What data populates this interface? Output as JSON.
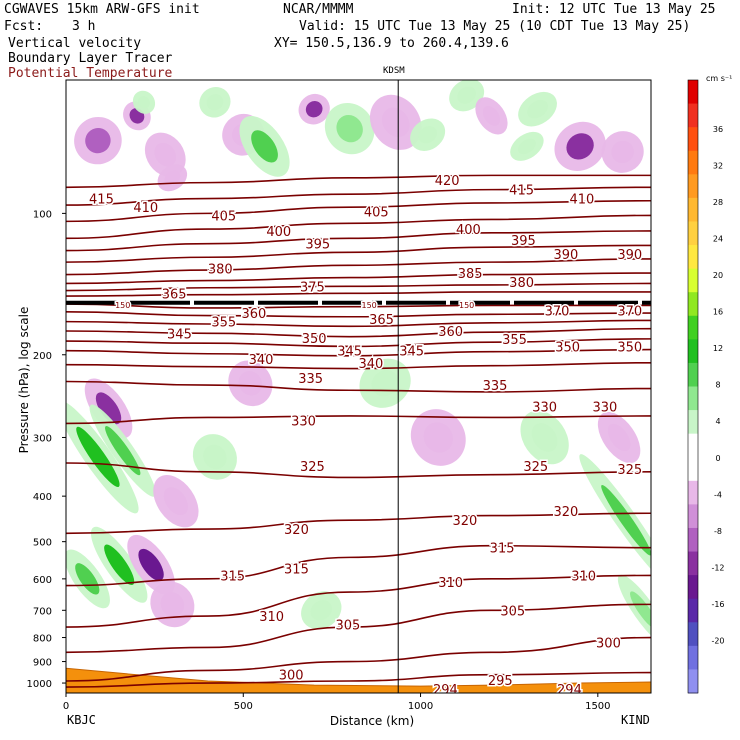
{
  "header": {
    "model": "CGWAVES 15km ARW-GFS init",
    "org": "NCAR/MMMM",
    "init": "Init: 12 UTC Tue 13 May 25",
    "fcst_label": "Fcst:",
    "fcst_value": "3 h",
    "valid": "Valid: 15 UTC Tue 13 May 25 (10 CDT Tue 13 May 25)",
    "field1": "Vertical velocity",
    "field2": "Boundary Layer Tracer",
    "field3": "Potential Temperature",
    "xy": "XY= 150.5,136.9 to 260.4,139.6",
    "station_mid": "KDSM",
    "station_left": "KBJC",
    "station_right": "KIND"
  },
  "colors": {
    "theta": "#7a0000",
    "theta_label": "#800000",
    "ground": "#f4900c",
    "tropopause": "#000000"
  },
  "chart_data": {
    "type": "cross-section",
    "xlabel": "Distance (km)",
    "ylabel": "Pressure (hPa), log scale",
    "xlim": [
      0,
      1650
    ],
    "ylim": [
      1050,
      52
    ],
    "x_ticks": [
      0,
      500,
      1000,
      1500
    ],
    "y_ticks": [
      100,
      200,
      300,
      400,
      500,
      600,
      700,
      800,
      900,
      1000
    ],
    "kdsm_km": 937,
    "theta_contours": [
      {
        "value": 420,
        "p": [
          88,
          86,
          84,
          83,
          83
        ]
      },
      {
        "value": 415,
        "p": [
          96,
          93,
          91,
          89,
          88
        ]
      },
      {
        "value": 410,
        "p": [
          104,
          100,
          97,
          95,
          94
        ]
      },
      {
        "value": 405,
        "p": [
          113,
          108,
          105,
          103,
          101
        ]
      },
      {
        "value": 400,
        "p": [
          120,
          116,
          113,
          110,
          109
        ]
      },
      {
        "value": 395,
        "p": [
          127,
          124,
          121,
          118,
          117
        ]
      },
      {
        "value": 390,
        "p": [
          135,
          132,
          129,
          127,
          125
        ]
      },
      {
        "value": 385,
        "p": [
          141,
          139,
          137,
          135,
          134
        ]
      },
      {
        "value": 380,
        "p": [
          146,
          144,
          143,
          142,
          141
        ]
      },
      {
        "value": 375,
        "p": [
          150,
          149,
          148,
          147,
          147
        ]
      },
      {
        "value": 370,
        "p": [
          156,
          159,
          158,
          157,
          157
        ]
      },
      {
        "value": 365,
        "p": [
          162,
          165,
          166,
          164,
          163
        ]
      },
      {
        "value": 360,
        "p": [
          170,
          172,
          174,
          171,
          169
        ]
      },
      {
        "value": 355,
        "p": [
          178,
          180,
          183,
          179,
          176
        ]
      },
      {
        "value": 350,
        "p": [
          187,
          189,
          192,
          188,
          185
        ]
      },
      {
        "value": 345,
        "p": [
          196,
          199,
          201,
          197,
          195
        ]
      },
      {
        "value": 340,
        "p": [
          210,
          212,
          214,
          211,
          208
        ]
      },
      {
        "value": 335,
        "p": [
          228,
          232,
          238,
          240,
          236
        ]
      },
      {
        "value": 330,
        "p": [
          280,
          272,
          270,
          272,
          270
        ]
      },
      {
        "value": 325,
        "p": [
          340,
          355,
          365,
          360,
          355
        ]
      },
      {
        "value": 320,
        "p": [
          480,
          470,
          450,
          440,
          435
        ]
      },
      {
        "value": 315,
        "p": [
          620,
          600,
          540,
          510,
          515
        ]
      },
      {
        "value": 310,
        "p": [
          760,
          720,
          640,
          600,
          590
        ]
      },
      {
        "value": 305,
        "p": [
          860,
          840,
          760,
          700,
          680
        ]
      },
      {
        "value": 300,
        "p": [
          990,
          940,
          900,
          860,
          800
        ]
      },
      {
        "value": 295,
        "p": [
          1020,
          1000,
          990,
          960,
          950
        ]
      }
    ],
    "theta_x": [
      0,
      400,
      800,
      1200,
      1650
    ],
    "theta_labels": [
      {
        "text": "420",
        "x": 1075,
        "p": 85
      },
      {
        "text": "415",
        "x": 100,
        "p": 93
      },
      {
        "text": "415",
        "x": 1285,
        "p": 89
      },
      {
        "text": "410",
        "x": 225,
        "p": 97
      },
      {
        "text": "410",
        "x": 1455,
        "p": 93
      },
      {
        "text": "405",
        "x": 445,
        "p": 101
      },
      {
        "text": "405",
        "x": 875,
        "p": 99
      },
      {
        "text": "400",
        "x": 600,
        "p": 109
      },
      {
        "text": "400",
        "x": 1135,
        "p": 108
      },
      {
        "text": "395",
        "x": 710,
        "p": 116
      },
      {
        "text": "395",
        "x": 1290,
        "p": 114
      },
      {
        "text": "390",
        "x": 1410,
        "p": 122
      },
      {
        "text": "390",
        "x": 1590,
        "p": 122
      },
      {
        "text": "385",
        "x": 1140,
        "p": 134
      },
      {
        "text": "380",
        "x": 435,
        "p": 131
      },
      {
        "text": "380",
        "x": 1285,
        "p": 140
      },
      {
        "text": "375",
        "x": 695,
        "p": 143
      },
      {
        "text": "365",
        "x": 305,
        "p": 148
      },
      {
        "text": "365",
        "x": 890,
        "p": 168
      },
      {
        "text": "360",
        "x": 530,
        "p": 163
      },
      {
        "text": "360",
        "x": 1085,
        "p": 178
      },
      {
        "text": "370",
        "x": 1385,
        "p": 161
      },
      {
        "text": "370",
        "x": 1590,
        "p": 161
      },
      {
        "text": "355",
        "x": 445,
        "p": 170
      },
      {
        "text": "355",
        "x": 1265,
        "p": 185
      },
      {
        "text": "350",
        "x": 700,
        "p": 184
      },
      {
        "text": "350",
        "x": 1415,
        "p": 192
      },
      {
        "text": "350",
        "x": 1590,
        "p": 192
      },
      {
        "text": "345",
        "x": 320,
        "p": 180
      },
      {
        "text": "345",
        "x": 800,
        "p": 196
      },
      {
        "text": "345",
        "x": 975,
        "p": 196
      },
      {
        "text": "340",
        "x": 550,
        "p": 204
      },
      {
        "text": "340",
        "x": 860,
        "p": 208
      },
      {
        "text": "335",
        "x": 690,
        "p": 224
      },
      {
        "text": "335",
        "x": 1210,
        "p": 232
      },
      {
        "text": "330",
        "x": 670,
        "p": 276
      },
      {
        "text": "330",
        "x": 1350,
        "p": 258
      },
      {
        "text": "330",
        "x": 1520,
        "p": 258
      },
      {
        "text": "325",
        "x": 695,
        "p": 345
      },
      {
        "text": "325",
        "x": 1325,
        "p": 345
      },
      {
        "text": "325",
        "x": 1590,
        "p": 350
      },
      {
        "text": "320",
        "x": 650,
        "p": 470
      },
      {
        "text": "320",
        "x": 1125,
        "p": 450
      },
      {
        "text": "320",
        "x": 1410,
        "p": 430
      },
      {
        "text": "315",
        "x": 470,
        "p": 590
      },
      {
        "text": "315",
        "x": 650,
        "p": 570
      },
      {
        "text": "315",
        "x": 1230,
        "p": 515
      },
      {
        "text": "310",
        "x": 580,
        "p": 720
      },
      {
        "text": "310",
        "x": 1085,
        "p": 610
      },
      {
        "text": "310",
        "x": 1460,
        "p": 590
      },
      {
        "text": "305",
        "x": 795,
        "p": 750
      },
      {
        "text": "305",
        "x": 1260,
        "p": 700
      },
      {
        "text": "300",
        "x": 635,
        "p": 960
      },
      {
        "text": "300",
        "x": 1530,
        "p": 820
      },
      {
        "text": "295",
        "x": 1225,
        "p": 985
      },
      {
        "text": "294",
        "x": 1070,
        "p": 1030
      },
      {
        "text": "294",
        "x": 1420,
        "p": 1030
      },
      {
        "text": "150",
        "x": 160,
        "p": 155
      },
      {
        "text": "150",
        "x": 855,
        "p": 155
      },
      {
        "text": "150",
        "x": 1130,
        "p": 155
      }
    ],
    "tropopause_p": 155,
    "ground_p": [
      930,
      960,
      990,
      1010,
      1015,
      1010,
      1000,
      995
    ],
    "ground_x": [
      0,
      200,
      400,
      700,
      1000,
      1200,
      1450,
      1650
    ],
    "w_features": [
      {
        "x": 90,
        "p": 70,
        "rx": 45,
        "rp": 0.08,
        "v": -6
      },
      {
        "x": 200,
        "p": 62,
        "rx": 25,
        "rp": 0.05,
        "v": -8
      },
      {
        "x": 280,
        "p": 75,
        "rx": 35,
        "rp": 0.08,
        "v": -4
      },
      {
        "x": 420,
        "p": 58,
        "rx": 30,
        "rp": 0.05,
        "v": 4
      },
      {
        "x": 500,
        "p": 68,
        "rx": 40,
        "rp": 0.07,
        "v": -4
      },
      {
        "x": 560,
        "p": 72,
        "rx": 35,
        "rp": 0.12,
        "v": 8
      },
      {
        "x": 700,
        "p": 60,
        "rx": 30,
        "rp": 0.05,
        "v": -8
      },
      {
        "x": 800,
        "p": 66,
        "rx": 45,
        "rp": 0.09,
        "v": 6
      },
      {
        "x": 930,
        "p": 64,
        "rx": 45,
        "rp": 0.1,
        "v": -4
      },
      {
        "x": 1020,
        "p": 68,
        "rx": 35,
        "rp": 0.05,
        "v": 4
      },
      {
        "x": 1130,
        "p": 56,
        "rx": 35,
        "rp": 0.05,
        "v": 4
      },
      {
        "x": 1200,
        "p": 62,
        "rx": 25,
        "rp": 0.07,
        "v": -4
      },
      {
        "x": 1330,
        "p": 60,
        "rx": 40,
        "rp": 0.05,
        "v": 4
      },
      {
        "x": 1450,
        "p": 72,
        "rx": 50,
        "rp": 0.08,
        "v": -8
      },
      {
        "x": 1570,
        "p": 74,
        "rx": 40,
        "rp": 0.07,
        "v": -4
      },
      {
        "x": 1300,
        "p": 72,
        "rx": 35,
        "rp": 0.04,
        "v": 4
      },
      {
        "x": 220,
        "p": 58,
        "rx": 20,
        "rp": 0.04,
        "v": 4
      },
      {
        "x": 300,
        "p": 84,
        "rx": 30,
        "rp": 0.04,
        "v": -4
      },
      {
        "x": 120,
        "p": 260,
        "rx": 30,
        "rp": 0.12,
        "v": -8
      },
      {
        "x": 90,
        "p": 330,
        "rx": 25,
        "rp": 0.25,
        "v": 10
      },
      {
        "x": 160,
        "p": 320,
        "rx": 20,
        "rp": 0.2,
        "v": 8
      },
      {
        "x": 60,
        "p": 600,
        "rx": 25,
        "rp": 0.12,
        "v": 8
      },
      {
        "x": 150,
        "p": 560,
        "rx": 25,
        "rp": 0.16,
        "v": 10
      },
      {
        "x": 240,
        "p": 560,
        "rx": 30,
        "rp": 0.12,
        "v": -10
      },
      {
        "x": 310,
        "p": 410,
        "rx": 35,
        "rp": 0.1,
        "v": -4
      },
      {
        "x": 420,
        "p": 330,
        "rx": 40,
        "rp": 0.08,
        "v": 4
      },
      {
        "x": 520,
        "p": 230,
        "rx": 40,
        "rp": 0.08,
        "v": -4
      },
      {
        "x": 900,
        "p": 230,
        "rx": 50,
        "rp": 0.08,
        "v": 4
      },
      {
        "x": 1050,
        "p": 300,
        "rx": 50,
        "rp": 0.1,
        "v": -4
      },
      {
        "x": 1350,
        "p": 300,
        "rx": 40,
        "rp": 0.1,
        "v": 4
      },
      {
        "x": 1580,
        "p": 450,
        "rx": 20,
        "rp": 0.3,
        "v": 8
      },
      {
        "x": 1560,
        "p": 300,
        "rx": 30,
        "rp": 0.1,
        "v": -4
      },
      {
        "x": 1630,
        "p": 700,
        "rx": 20,
        "rp": 0.15,
        "v": 6
      },
      {
        "x": 300,
        "p": 680,
        "rx": 40,
        "rp": 0.08,
        "v": -4
      },
      {
        "x": 720,
        "p": 700,
        "rx": 40,
        "rp": 0.06,
        "v": 4
      }
    ]
  },
  "colorbar": {
    "unit": "cm s⁻¹",
    "ticks": [
      "36",
      "32",
      "28",
      "24",
      "20",
      "16",
      "12",
      "8",
      "4",
      "0",
      "-4",
      "-8",
      "-12",
      "-16",
      "-20"
    ],
    "colors": [
      "#e00000",
      "#f03020",
      "#ff5010",
      "#ff7a10",
      "#ff9a20",
      "#ffb830",
      "#ffd040",
      "#ffe840",
      "#d8ff30",
      "#90e820",
      "#40d020",
      "#20c020",
      "#50d050",
      "#90e890",
      "#c8f5c8",
      "#ffffff",
      "#ffffff",
      "#e8b8e8",
      "#d090d8",
      "#b060c0",
      "#8a30a0",
      "#6a1890",
      "#5a28a8",
      "#5050c0",
      "#7070e0",
      "#9090f0"
    ]
  }
}
